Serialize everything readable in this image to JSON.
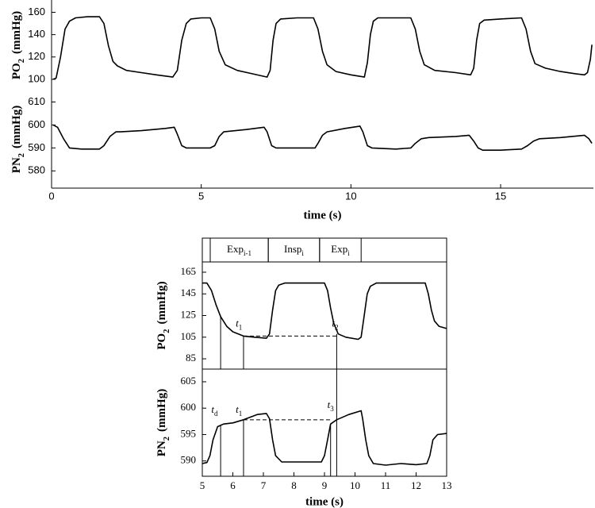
{
  "chart_data": [
    {
      "type": "line",
      "color": "#000000",
      "ylabel": {
        "text": "PO",
        "sub": "2",
        "unit": "(mmHg)"
      },
      "xlim": [
        0,
        18.1
      ],
      "ylim": [
        90,
        171
      ],
      "yticks": [
        100,
        120,
        140,
        160
      ],
      "x": [
        0.05,
        0.15,
        0.3,
        0.45,
        0.6,
        0.8,
        1.2,
        1.6,
        1.75,
        1.9,
        2.05,
        2.2,
        2.5,
        3.0,
        3.5,
        4.05,
        4.2,
        4.35,
        4.5,
        4.65,
        5.0,
        5.3,
        5.45,
        5.6,
        5.8,
        6.2,
        6.7,
        7.2,
        7.3,
        7.4,
        7.5,
        7.65,
        8.2,
        8.75,
        8.9,
        9.05,
        9.2,
        9.5,
        10.0,
        10.45,
        10.55,
        10.65,
        10.75,
        10.9,
        11.5,
        12.0,
        12.15,
        12.3,
        12.45,
        12.8,
        13.5,
        14.0,
        14.1,
        14.2,
        14.3,
        14.45,
        15.0,
        15.7,
        15.85,
        16.0,
        16.15,
        16.5,
        17.0,
        17.5,
        17.8,
        17.9,
        18.0,
        18.05
      ],
      "values": [
        100,
        101,
        120,
        145,
        152,
        155,
        156,
        156,
        150,
        130,
        116,
        112,
        108,
        106,
        104,
        102,
        108,
        135,
        150,
        154,
        155,
        155,
        145,
        125,
        113,
        108,
        105,
        102,
        108,
        135,
        150,
        154,
        155,
        155,
        145,
        125,
        113,
        107,
        104,
        102,
        115,
        140,
        152,
        155,
        155,
        155,
        145,
        125,
        113,
        108,
        106,
        104,
        110,
        135,
        150,
        153,
        154,
        155,
        145,
        125,
        114,
        110,
        107,
        105,
        104,
        106,
        118,
        131
      ]
    },
    {
      "type": "line",
      "color": "#000000",
      "ylabel": {
        "text": "PN",
        "sub": "2",
        "unit": "(mmHg)"
      },
      "xlabel": "time  (s)",
      "xlim": [
        0,
        18.1
      ],
      "xticks": [
        0,
        5,
        10,
        15
      ],
      "ylim": [
        572.5,
        615
      ],
      "yticks": [
        580,
        590,
        600,
        610
      ],
      "x": [
        0.05,
        0.2,
        0.4,
        0.6,
        1.0,
        1.6,
        1.75,
        1.95,
        2.15,
        2.3,
        3.0,
        3.8,
        4.1,
        4.2,
        4.35,
        4.5,
        5.0,
        5.3,
        5.45,
        5.6,
        5.75,
        6.5,
        7.1,
        7.2,
        7.35,
        7.5,
        8.2,
        8.8,
        8.9,
        9.05,
        9.2,
        9.8,
        10.3,
        10.4,
        10.55,
        10.7,
        11.5,
        12.0,
        12.15,
        12.35,
        12.6,
        13.5,
        13.95,
        14.1,
        14.25,
        14.4,
        15.0,
        15.7,
        15.9,
        16.1,
        16.3,
        17.0,
        17.8,
        17.95,
        18.05
      ],
      "values": [
        600,
        599,
        594,
        590,
        589.5,
        589.5,
        591,
        595,
        597,
        597,
        597.5,
        598.5,
        599,
        596,
        591,
        590,
        590,
        590,
        591,
        595,
        597,
        598,
        599,
        597,
        591,
        590,
        590,
        590,
        592,
        595.5,
        597,
        598.5,
        599.5,
        597,
        591,
        590,
        589.5,
        590,
        592,
        594,
        594.5,
        595,
        595.5,
        593,
        590,
        589,
        589,
        589.5,
        591,
        593,
        594,
        594.5,
        595.5,
        594,
        592
      ]
    },
    {
      "type": "line",
      "color": "#000000",
      "ylabel": {
        "text": "PO",
        "sub": "2",
        "unit": "(mmHg)"
      },
      "phases": [
        {
          "label": {
            "text": "Exp",
            "sub": "i-1"
          },
          "xlim": [
            5.26,
            7.16
          ]
        },
        {
          "label": {
            "text": "Insp",
            "sub": "i"
          },
          "xlim": [
            7.16,
            8.84
          ]
        },
        {
          "label": {
            "text": "Exp",
            "sub": "i"
          },
          "xlim": [
            8.84,
            10.2
          ]
        }
      ],
      "xlim": [
        5,
        13
      ],
      "ylim": [
        75.5,
        174.5
      ],
      "yticks": [
        85,
        105,
        125,
        145,
        165
      ],
      "x": [
        5.0,
        5.15,
        5.3,
        5.45,
        5.6,
        5.8,
        6.0,
        6.35,
        6.7,
        7.1,
        7.2,
        7.3,
        7.4,
        7.5,
        7.7,
        8.5,
        9.0,
        9.1,
        9.2,
        9.3,
        9.45,
        9.7,
        10.1,
        10.2,
        10.3,
        10.4,
        10.5,
        10.7,
        11.5,
        12.3,
        12.4,
        12.5,
        12.6,
        12.75,
        13.0
      ],
      "values": [
        155,
        155,
        148,
        135,
        124,
        115,
        110,
        106,
        105,
        104,
        108,
        130,
        148,
        153,
        155,
        155,
        155,
        148,
        132,
        118,
        108,
        105,
        103,
        105,
        125,
        145,
        152,
        155,
        155,
        155,
        145,
        130,
        120,
        115,
        113
      ],
      "vlines": [
        {
          "x": 5.6,
          "y": 124
        },
        {
          "x": 6.35,
          "y": 106
        },
        {
          "x": 9.4,
          "y": 108
        }
      ],
      "hline": {
        "y": 106,
        "x": [
          6.35,
          9.4
        ]
      },
      "annotations": [
        {
          "text": "t",
          "sub": "1",
          "x": 6.2,
          "y": 117
        },
        {
          "text": "t",
          "sub": "2",
          "x": 9.35,
          "y": 117
        }
      ]
    },
    {
      "type": "line",
      "color": "#000000",
      "ylabel": {
        "text": "PN",
        "sub": "2",
        "unit": "(mmHg)"
      },
      "xlabel": "time  (s)",
      "xlim": [
        5,
        13
      ],
      "xticks": [
        5,
        6,
        7,
        8,
        9,
        10,
        11,
        12,
        13
      ],
      "ylim": [
        587.1,
        607.4
      ],
      "yticks": [
        590,
        595,
        600,
        605
      ],
      "x": [
        5.0,
        5.15,
        5.25,
        5.35,
        5.5,
        5.7,
        6.0,
        6.35,
        6.8,
        7.1,
        7.2,
        7.3,
        7.4,
        7.6,
        8.0,
        8.9,
        9.0,
        9.1,
        9.2,
        9.4,
        9.8,
        10.2,
        10.25,
        10.35,
        10.45,
        10.6,
        11.0,
        11.5,
        12.0,
        12.35,
        12.45,
        12.55,
        12.7,
        13.0
      ],
      "values": [
        589.5,
        589.7,
        591,
        594,
        596.5,
        597,
        597.2,
        597.8,
        598.8,
        599,
        598,
        594,
        591,
        589.8,
        589.8,
        589.8,
        591,
        594,
        597,
        597.8,
        598.8,
        599.5,
        598,
        594,
        591,
        589.5,
        589.2,
        589.5,
        589.3,
        589.5,
        591,
        594,
        595,
        595.2
      ],
      "vlines": [
        {
          "x": 5.6,
          "y": 596.8
        },
        {
          "x": 6.35,
          "y": 597.8
        },
        {
          "x": 9.2,
          "y": 597
        },
        {
          "x": 9.4,
          "y": 607.4
        }
      ],
      "hline": {
        "y": 597.8,
        "x": [
          6.35,
          9.2
        ]
      },
      "annotations": [
        {
          "text": "t",
          "sub": "d",
          "x": 5.4,
          "y": 599.6
        },
        {
          "text": "t",
          "sub": "1",
          "x": 6.2,
          "y": 599.6
        },
        {
          "text": "t",
          "sub": "3",
          "x": 9.2,
          "y": 600.5
        }
      ]
    }
  ]
}
